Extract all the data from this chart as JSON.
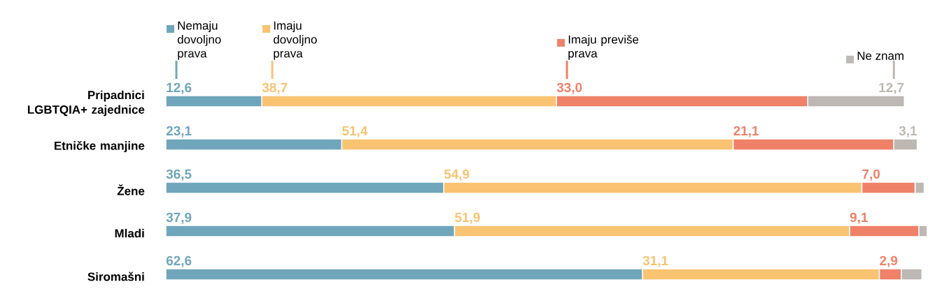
{
  "chart_data": {
    "type": "bar",
    "orientation": "horizontal",
    "stacked": true,
    "data_labels": true,
    "legend": "top",
    "categories": [
      "Pripadnici LGBTQIA+ zajednice",
      "Etničke manjine",
      "Žene",
      "Mladi",
      "Siromašni"
    ],
    "series": [
      {
        "name": "Nemaju dovoljno prava",
        "color": "#6fa6bb",
        "values": [
          12.6,
          23.1,
          36.5,
          37.9,
          62.6
        ],
        "value_labels": [
          "12,6",
          "23,1",
          "36,5",
          "37,9",
          "62,6"
        ]
      },
      {
        "name": "Imaju dovoljno prava",
        "color": "#f9c372",
        "values": [
          38.7,
          51.4,
          54.9,
          51.9,
          31.1
        ],
        "value_labels": [
          "38,7",
          "51,4",
          "54,9",
          "51,9",
          "31,1"
        ]
      },
      {
        "name": "Imaju previše prava",
        "color": "#ee8168",
        "values": [
          33.0,
          21.1,
          7.0,
          9.1,
          2.9
        ],
        "value_labels": [
          "33,0",
          "21,1",
          "7,0",
          "9,1",
          "2,9"
        ]
      },
      {
        "name": "Ne znam",
        "color": "#bdb8b3",
        "values": [
          12.7,
          3.1,
          1.2,
          1.1,
          2.7
        ],
        "value_labels": [
          "12,7",
          "3,1",
          null,
          null,
          null
        ]
      }
    ]
  }
}
